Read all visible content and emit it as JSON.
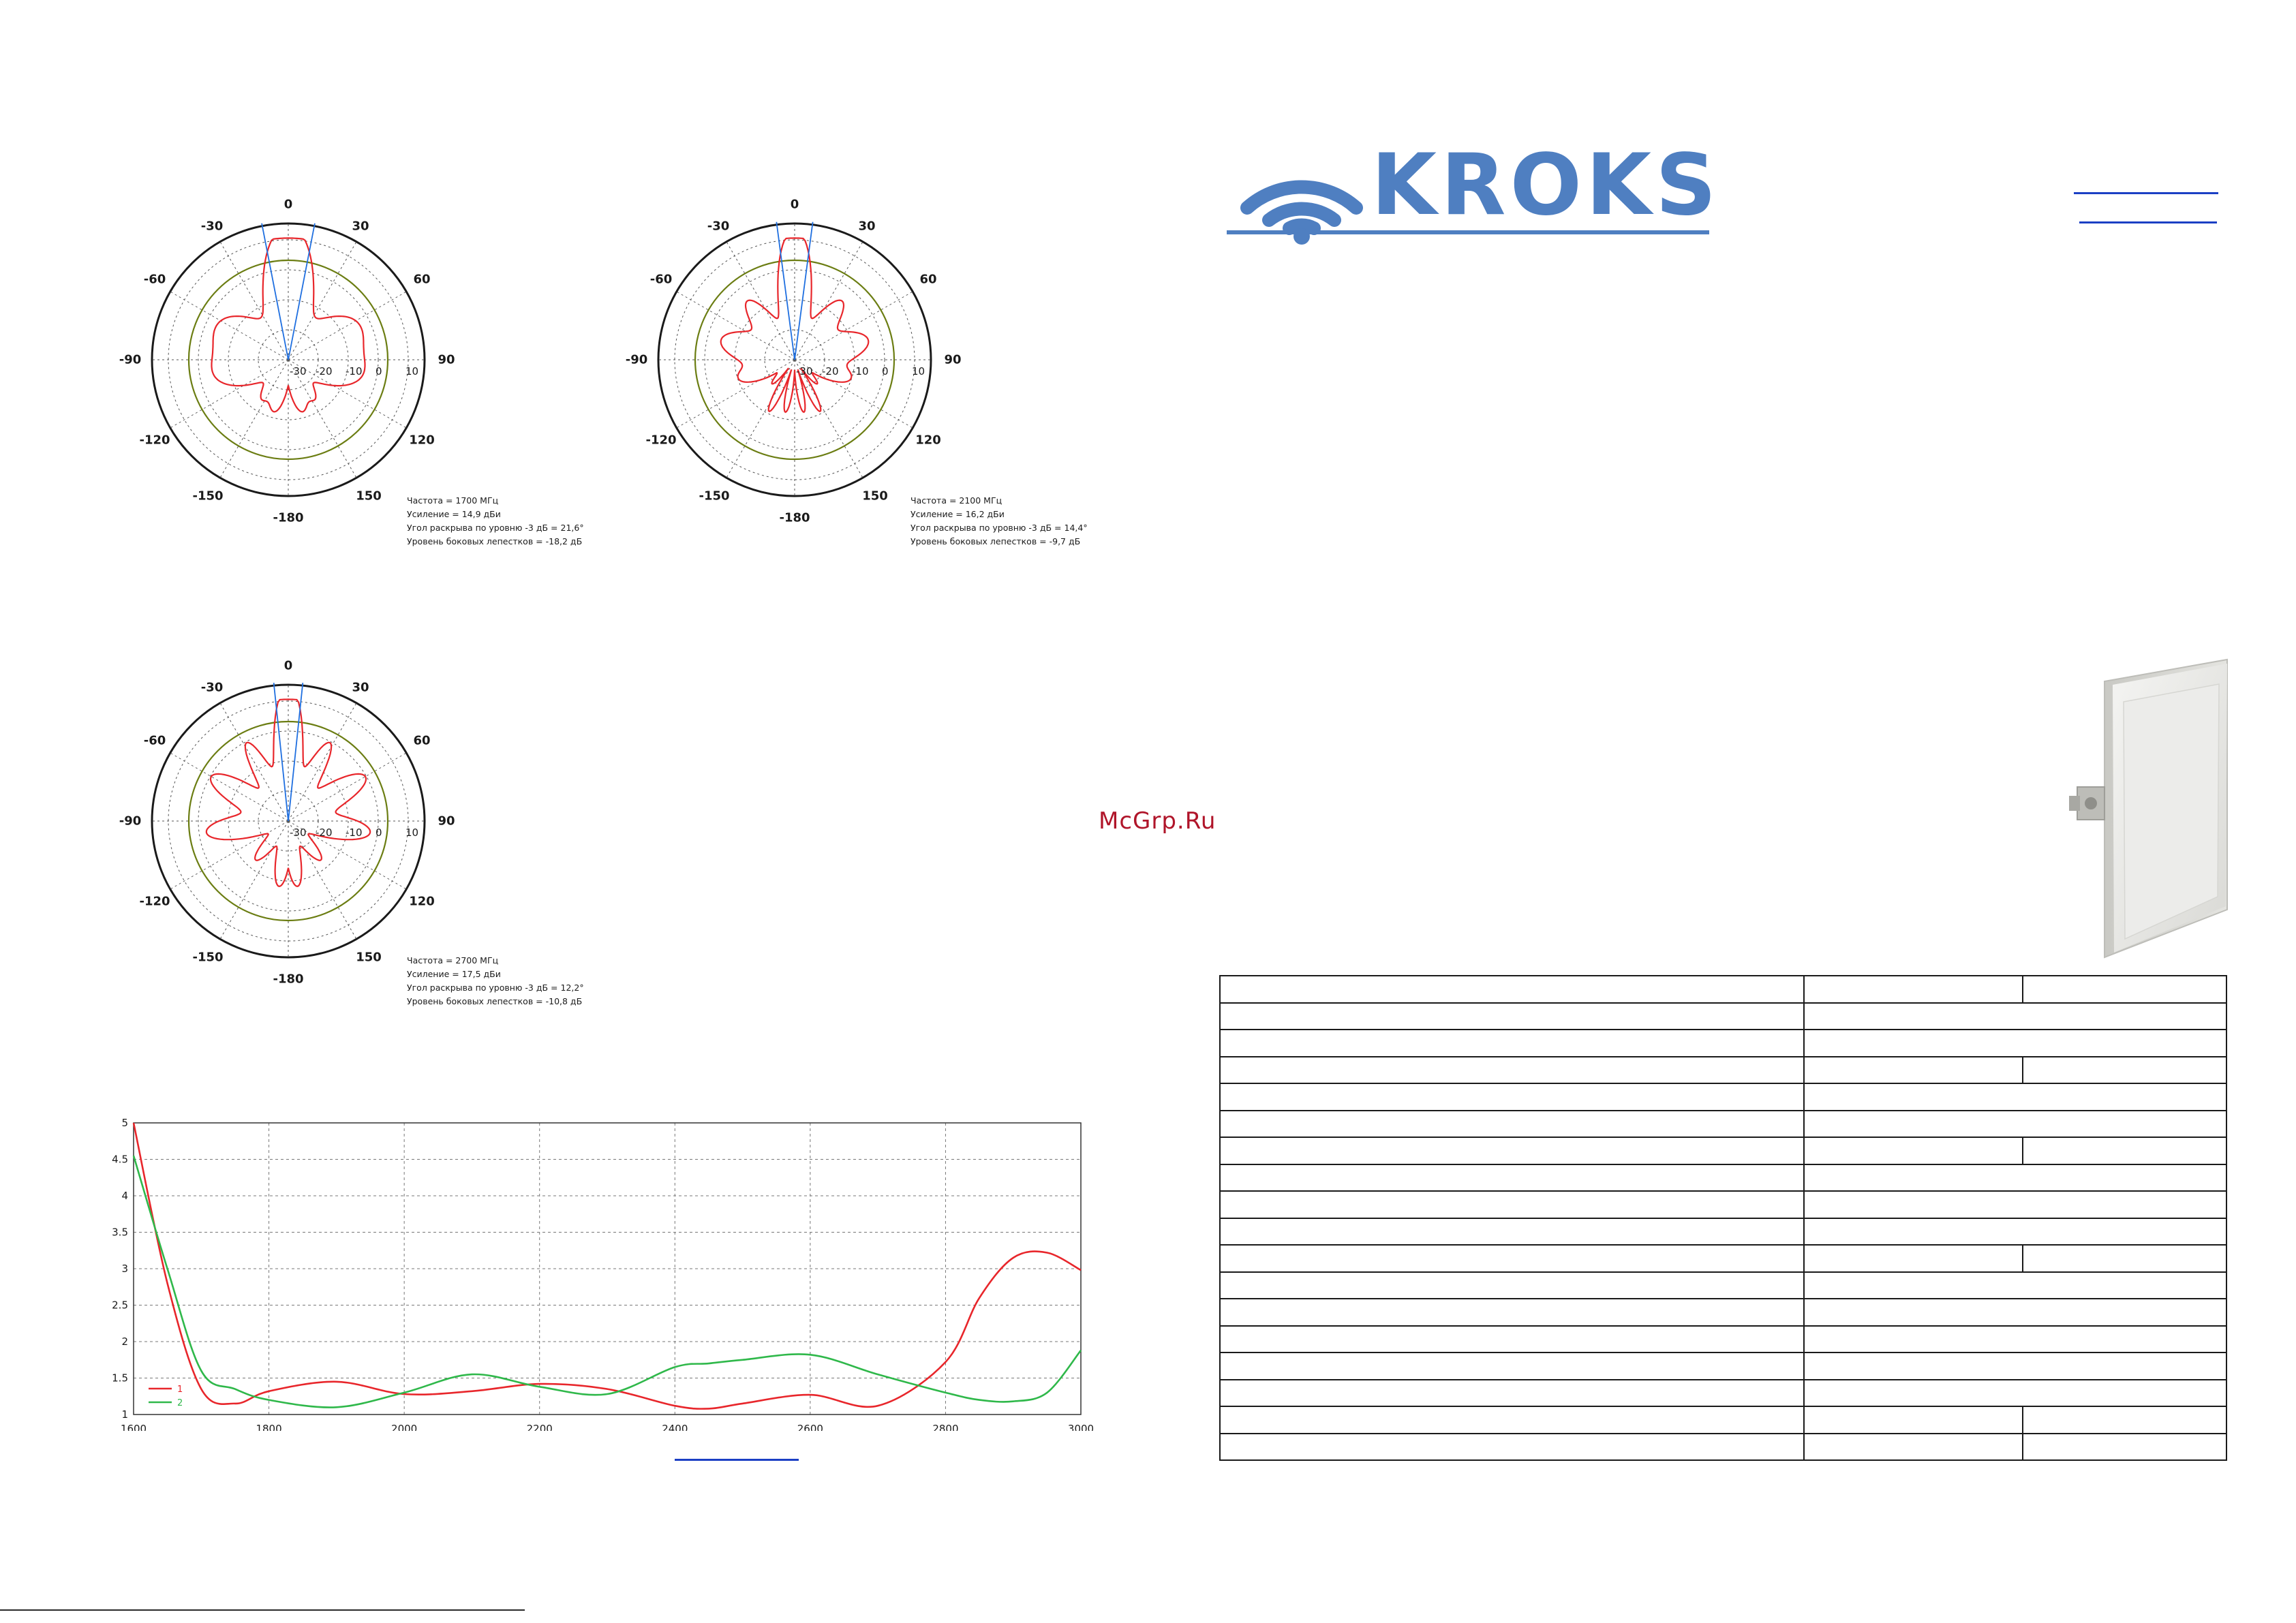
{
  "brand": {
    "name": "KROKS",
    "color": "#4f7fc1"
  },
  "watermark": "McGrp.Ru",
  "polar_plots": [
    {
      "angles": [
        "0",
        "30",
        "60",
        "90",
        "120",
        "150",
        "-180",
        "-150",
        "-120",
        "-90",
        "-60",
        "-30"
      ],
      "radial_labels": [
        "-30",
        "-20",
        "-10",
        "0",
        "10"
      ],
      "caption": [
        "Частота = 1700 МГц",
        "Усиление = 14,9 дБи",
        "Угол раскрыва по уровню -3 дБ = 21,6°",
        "Уровень боковых лепестков = -18,2 дБ"
      ]
    },
    {
      "angles": [
        "0",
        "30",
        "60",
        "90",
        "120",
        "150",
        "-180",
        "-150",
        "-120",
        "-90",
        "-60",
        "-30"
      ],
      "radial_labels": [
        "-30",
        "-20",
        "-10",
        "0",
        "10"
      ],
      "caption": [
        "Частота = 2100 МГц",
        "Усиление = 16,2 дБи",
        "Угол раскрыва по уровню -3 дБ = 14,4°",
        "Уровень боковых лепестков = -9,7 дБ"
      ]
    },
    {
      "angles": [
        "0",
        "30",
        "60",
        "90",
        "120",
        "150",
        "-180",
        "-150",
        "-120",
        "-90",
        "-60",
        "-30"
      ],
      "radial_labels": [
        "-30",
        "-20",
        "-10",
        "0",
        "10"
      ],
      "caption": [
        "Частота = 2700 МГц",
        "Усиление = 17,5 дБи",
        "Угол раскрыва по уровню -3 дБ = 12,2°",
        "Уровень боковых лепестков = -10,8 дБ"
      ]
    }
  ],
  "chart_data": {
    "type": "line",
    "x": [
      1600,
      1650,
      1700,
      1750,
      1800,
      1900,
      2000,
      2100,
      2200,
      2300,
      2400,
      2450,
      2500,
      2600,
      2700,
      2800,
      2850,
      2900,
      2950,
      3000
    ],
    "xlim": [
      1600,
      3000
    ],
    "ylim": [
      1,
      5
    ],
    "xticks": [
      "1600",
      "1800",
      "2000",
      "2200",
      "2400",
      "2600",
      "2800",
      "3000"
    ],
    "yticks": [
      "1",
      "1.5",
      "2",
      "2.5",
      "3",
      "3.5",
      "4",
      "4.5",
      "5"
    ],
    "grid": true,
    "legend_position": "bottom-left",
    "series": [
      {
        "name": "1",
        "color": "#e8262b",
        "values": [
          5.0,
          2.8,
          1.35,
          1.15,
          1.32,
          1.45,
          1.28,
          1.32,
          1.42,
          1.35,
          1.12,
          1.08,
          1.15,
          1.27,
          1.12,
          1.72,
          2.6,
          3.15,
          3.22,
          2.98
        ]
      },
      {
        "name": "2",
        "color": "#2fb84a",
        "values": [
          4.55,
          3.0,
          1.6,
          1.35,
          1.2,
          1.1,
          1.3,
          1.55,
          1.38,
          1.28,
          1.65,
          1.7,
          1.75,
          1.82,
          1.55,
          1.3,
          1.2,
          1.18,
          1.3,
          1.88
        ]
      }
    ]
  }
}
